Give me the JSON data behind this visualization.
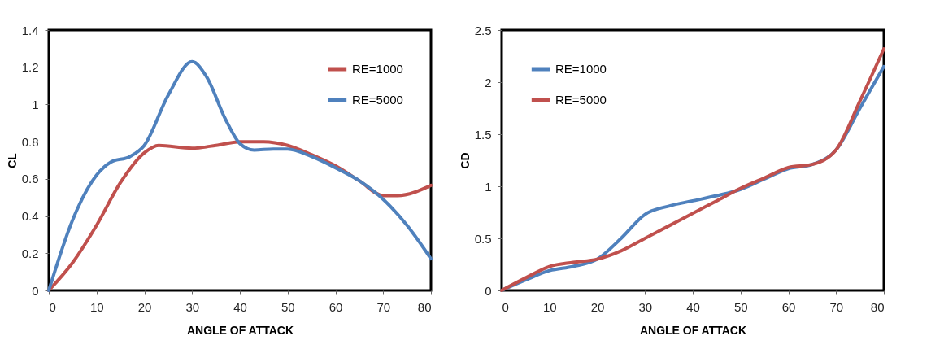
{
  "chart_data": [
    {
      "type": "line",
      "xlabel": "ANGLE OF ATTACK",
      "ylabel": "CL",
      "xlim": [
        0,
        80
      ],
      "xticks": [
        0,
        10,
        20,
        30,
        40,
        50,
        60,
        70,
        80
      ],
      "ylim": [
        0,
        1.4
      ],
      "yticks": [
        0,
        0.2,
        0.4,
        0.6,
        0.8,
        1,
        1.2,
        1.4
      ],
      "legend": "top right",
      "series": [
        {
          "name": "RE=1000",
          "color": "#c0504d",
          "x": [
            0,
            5,
            10,
            15,
            20,
            23,
            30,
            35,
            40,
            45,
            50,
            55,
            60,
            65,
            70,
            73,
            80
          ],
          "values": [
            0,
            0.15,
            0.35,
            0.58,
            0.74,
            0.78,
            0.765,
            0.78,
            0.8,
            0.8,
            0.78,
            0.73,
            0.67,
            0.59,
            0.51,
            0.51,
            0.565
          ]
        },
        {
          "name": "RE=5000",
          "color": "#4f81bd",
          "x": [
            0,
            5,
            10,
            13,
            17,
            20,
            25,
            30,
            33,
            37,
            40,
            43,
            47,
            50,
            55,
            60,
            65,
            70,
            75,
            80
          ],
          "values": [
            0,
            0.38,
            0.62,
            0.69,
            0.72,
            0.78,
            1.05,
            1.23,
            1.15,
            0.92,
            0.79,
            0.755,
            0.76,
            0.76,
            0.72,
            0.66,
            0.59,
            0.49,
            0.35,
            0.17
          ]
        }
      ]
    },
    {
      "type": "line",
      "xlabel": "ANGLE OF ATTACK",
      "ylabel": "CD",
      "xlim": [
        0,
        80
      ],
      "xticks": [
        0,
        10,
        20,
        30,
        40,
        50,
        60,
        70,
        80
      ],
      "ylim": [
        0,
        2.5
      ],
      "yticks": [
        0,
        0.5,
        1,
        1.5,
        2,
        2.5
      ],
      "legend": "top left",
      "series": [
        {
          "name": "RE=1000",
          "color": "#4f81bd",
          "x": [
            0,
            5,
            10,
            15,
            20,
            25,
            30,
            35,
            40,
            45,
            50,
            55,
            60,
            65,
            70,
            75,
            80
          ],
          "values": [
            0,
            0.1,
            0.19,
            0.23,
            0.3,
            0.5,
            0.73,
            0.81,
            0.86,
            0.91,
            0.97,
            1.07,
            1.17,
            1.21,
            1.35,
            1.75,
            2.15
          ]
        },
        {
          "name": "RE=5000",
          "color": "#c0504d",
          "x": [
            0,
            5,
            10,
            15,
            20,
            25,
            30,
            35,
            40,
            45,
            50,
            55,
            60,
            65,
            70,
            75,
            80
          ],
          "values": [
            0,
            0.12,
            0.23,
            0.27,
            0.3,
            0.38,
            0.5,
            0.62,
            0.74,
            0.86,
            0.98,
            1.08,
            1.18,
            1.21,
            1.35,
            1.82,
            2.32
          ]
        }
      ]
    }
  ]
}
